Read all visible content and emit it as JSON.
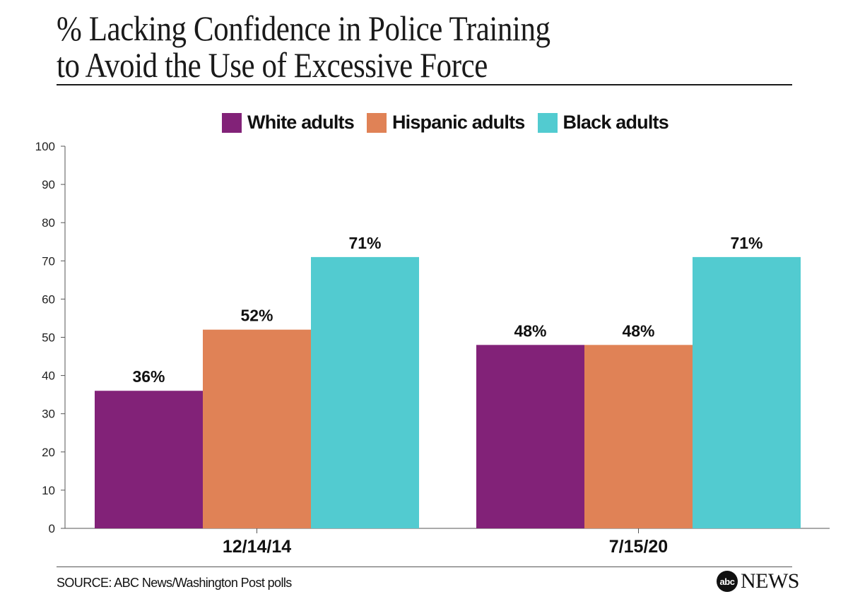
{
  "title_lines": [
    "% Lacking Confidence in Police Training",
    "to Avoid the Use of Excessive Force"
  ],
  "source": "SOURCE: ABC News/Washington Post polls",
  "logo": {
    "mark": "abc",
    "word": "NEWS"
  },
  "chart_data": {
    "type": "bar",
    "title": "% Lacking Confidence in Police Training to Avoid the Use of Excessive Force",
    "categories": [
      "12/14/14",
      "7/15/20"
    ],
    "series": [
      {
        "name": "White adults",
        "color": "#822278",
        "values": [
          36,
          48
        ],
        "labels": [
          "36%",
          "48%"
        ]
      },
      {
        "name": "Hispanic adults",
        "color": "#E08256",
        "values": [
          52,
          48
        ],
        "labels": [
          "52%",
          "48%"
        ]
      },
      {
        "name": "Black adults",
        "color": "#52CBD0",
        "values": [
          71,
          71
        ],
        "labels": [
          "71%",
          "71%"
        ]
      }
    ],
    "ylim": [
      0,
      100
    ],
    "yticks": [
      0,
      10,
      20,
      30,
      40,
      50,
      60,
      70,
      80,
      90,
      100
    ],
    "xlabel": "",
    "ylabel": "",
    "grid": false,
    "legend": "top-center"
  }
}
